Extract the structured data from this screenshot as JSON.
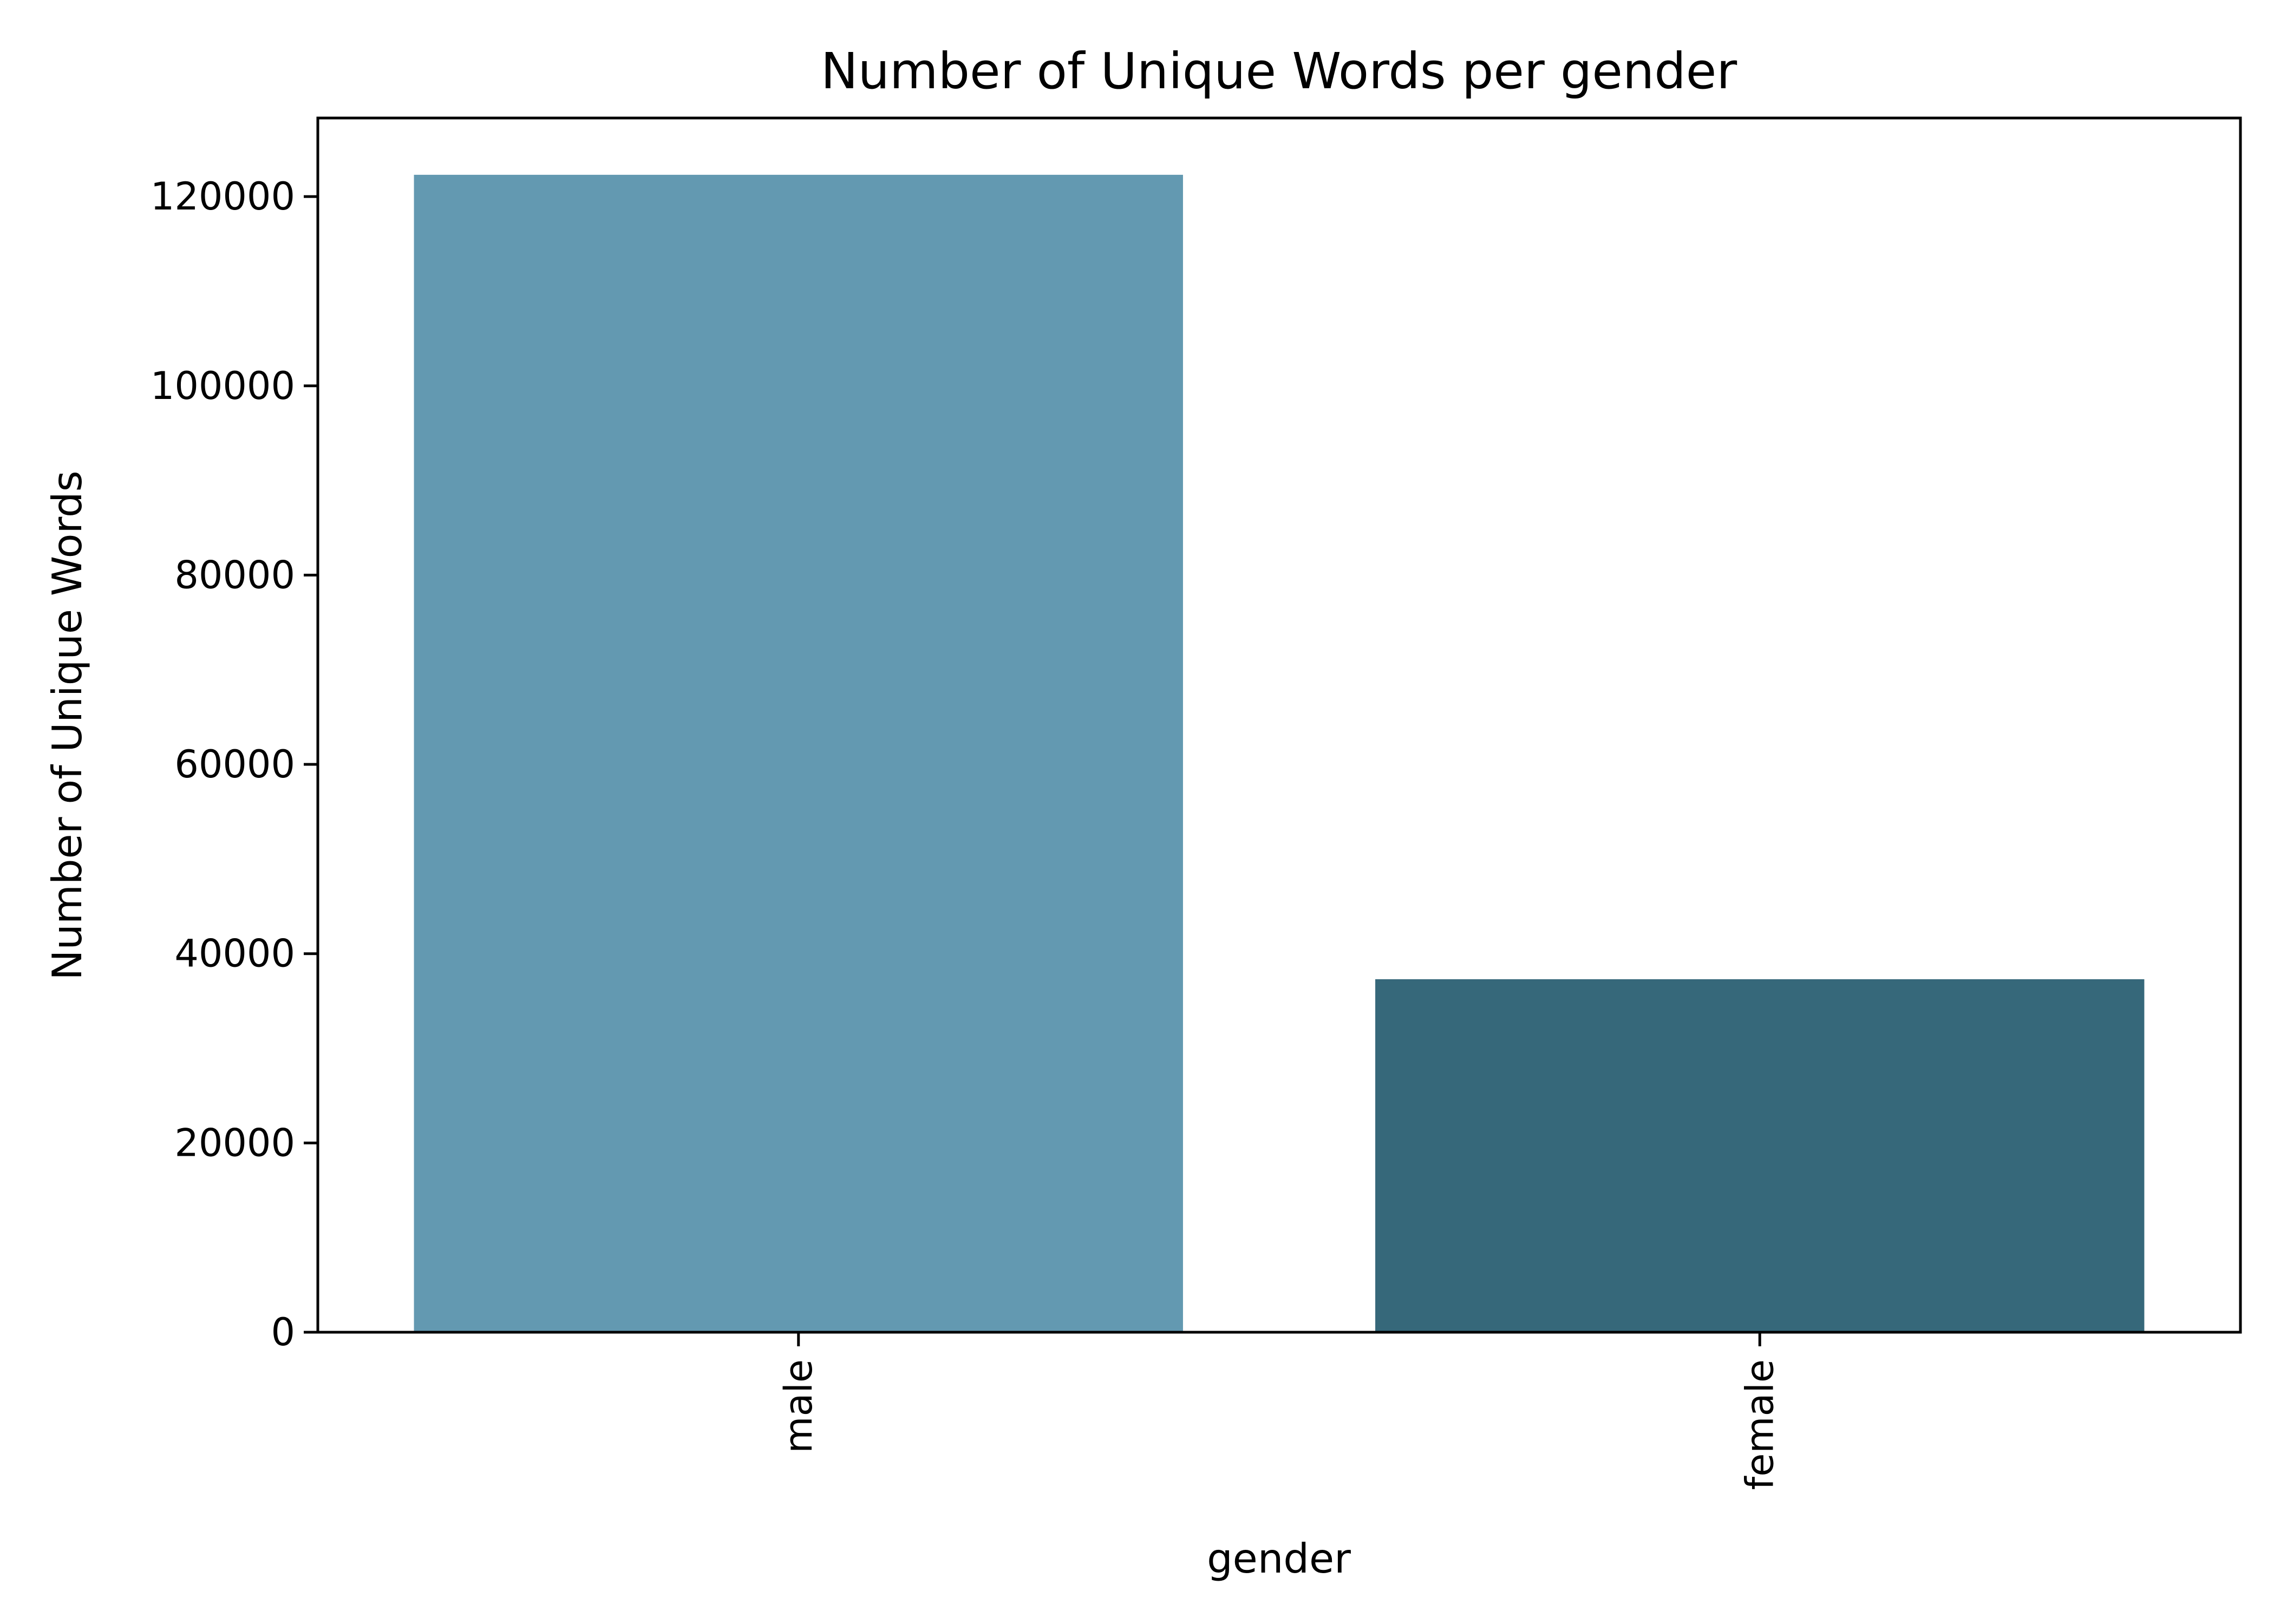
{
  "chart_data": {
    "type": "bar",
    "title": "Number of Unique Words per gender",
    "xlabel": "gender",
    "ylabel": "Number of Unique Words",
    "categories": [
      "male",
      "female"
    ],
    "values": [
      122300,
      37300
    ],
    "colors": [
      "#6399b1",
      "#36687a"
    ],
    "ylim": [
      0,
      128300
    ],
    "yticks": [
      0,
      20000,
      40000,
      60000,
      80000,
      100000,
      120000
    ],
    "ytick_labels": [
      "0",
      "20000",
      "40000",
      "60000",
      "80000",
      "100000",
      "120000"
    ],
    "grid": false,
    "legend": "none"
  }
}
